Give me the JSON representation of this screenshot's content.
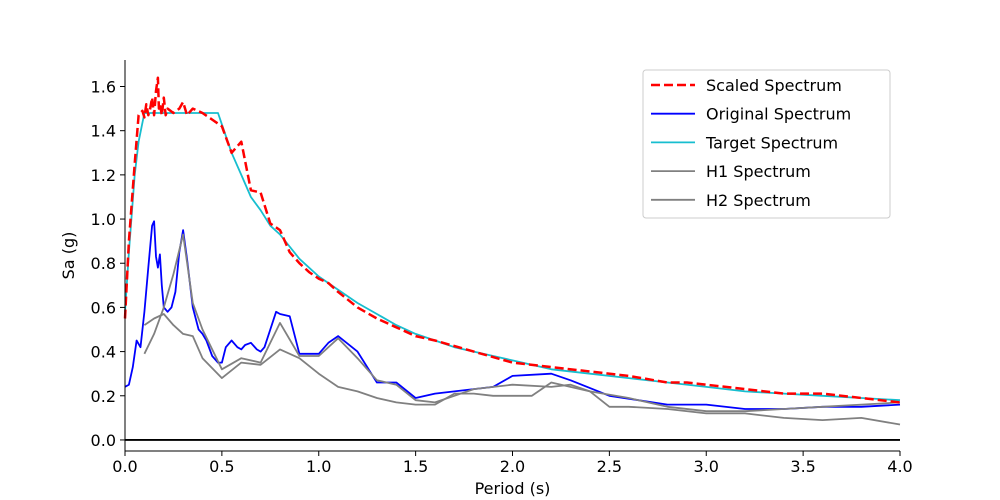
{
  "chart_data": {
    "type": "line",
    "title": "",
    "xlabel": "Period (s)",
    "ylabel": "Sa (g)",
    "xlim": [
      0.0,
      4.0
    ],
    "ylim": [
      -0.05,
      1.72
    ],
    "xticks": [
      "0.0",
      "0.5",
      "1.0",
      "1.5",
      "2.0",
      "2.5",
      "3.0",
      "3.5",
      "4.0"
    ],
    "yticks": [
      "0.0",
      "0.2",
      "0.4",
      "0.6",
      "0.8",
      "1.0",
      "1.2",
      "1.4",
      "1.6"
    ],
    "grid": false,
    "legend_position": "top-right",
    "series": [
      {
        "name": "Scaled Spectrum",
        "color": "#ff0000",
        "style": "dashed",
        "x": [
          0.0,
          0.02,
          0.05,
          0.07,
          0.09,
          0.1,
          0.11,
          0.12,
          0.13,
          0.14,
          0.15,
          0.16,
          0.17,
          0.175,
          0.18,
          0.19,
          0.2,
          0.21,
          0.22,
          0.25,
          0.28,
          0.3,
          0.32,
          0.35,
          0.4,
          0.45,
          0.5,
          0.55,
          0.6,
          0.65,
          0.7,
          0.75,
          0.8,
          0.85,
          0.9,
          0.95,
          1.0,
          1.05,
          1.1,
          1.2,
          1.3,
          1.4,
          1.5,
          1.6,
          1.8,
          2.0,
          2.2,
          2.4,
          2.6,
          2.8,
          2.9,
          3.0,
          3.2,
          3.4,
          3.6,
          3.8,
          4.0
        ],
        "y": [
          0.55,
          0.9,
          1.25,
          1.47,
          1.49,
          1.46,
          1.52,
          1.47,
          1.5,
          1.55,
          1.47,
          1.58,
          1.64,
          1.5,
          1.52,
          1.47,
          1.55,
          1.47,
          1.5,
          1.48,
          1.5,
          1.53,
          1.47,
          1.5,
          1.48,
          1.45,
          1.42,
          1.3,
          1.35,
          1.13,
          1.12,
          0.98,
          0.95,
          0.85,
          0.8,
          0.76,
          0.73,
          0.71,
          0.67,
          0.6,
          0.55,
          0.51,
          0.47,
          0.45,
          0.4,
          0.35,
          0.33,
          0.31,
          0.29,
          0.26,
          0.26,
          0.25,
          0.23,
          0.21,
          0.21,
          0.19,
          0.17
        ]
      },
      {
        "name": "Original Spectrum",
        "color": "#0000ff",
        "style": "solid",
        "x": [
          0.0,
          0.02,
          0.04,
          0.06,
          0.08,
          0.1,
          0.12,
          0.14,
          0.15,
          0.16,
          0.17,
          0.18,
          0.19,
          0.2,
          0.22,
          0.24,
          0.26,
          0.28,
          0.3,
          0.32,
          0.35,
          0.38,
          0.4,
          0.42,
          0.45,
          0.48,
          0.5,
          0.52,
          0.55,
          0.58,
          0.6,
          0.62,
          0.65,
          0.68,
          0.7,
          0.72,
          0.75,
          0.78,
          0.8,
          0.85,
          0.9,
          0.95,
          1.0,
          1.05,
          1.1,
          1.2,
          1.3,
          1.4,
          1.5,
          1.6,
          1.7,
          1.9,
          2.0,
          2.2,
          2.3,
          2.5,
          2.8,
          2.9,
          3.0,
          3.2,
          3.4,
          3.6,
          3.8,
          4.0
        ],
        "y": [
          0.24,
          0.25,
          0.33,
          0.45,
          0.42,
          0.58,
          0.78,
          0.97,
          0.99,
          0.83,
          0.78,
          0.84,
          0.7,
          0.6,
          0.58,
          0.6,
          0.67,
          0.85,
          0.95,
          0.82,
          0.6,
          0.5,
          0.48,
          0.45,
          0.38,
          0.35,
          0.35,
          0.42,
          0.45,
          0.42,
          0.41,
          0.43,
          0.44,
          0.41,
          0.4,
          0.42,
          0.5,
          0.58,
          0.57,
          0.56,
          0.39,
          0.39,
          0.39,
          0.44,
          0.47,
          0.4,
          0.26,
          0.26,
          0.19,
          0.21,
          0.22,
          0.24,
          0.29,
          0.3,
          0.27,
          0.2,
          0.16,
          0.16,
          0.16,
          0.14,
          0.14,
          0.15,
          0.15,
          0.16
        ]
      },
      {
        "name": "Target Spectrum",
        "color": "#17becf",
        "style": "solid",
        "x": [
          0.0,
          0.02,
          0.05,
          0.07,
          0.1,
          0.2,
          0.3,
          0.4,
          0.48,
          0.55,
          0.6,
          0.65,
          0.7,
          0.75,
          0.8,
          0.9,
          1.0,
          1.1,
          1.2,
          1.3,
          1.4,
          1.5,
          1.6,
          1.7,
          1.8,
          2.0,
          2.2,
          2.4,
          2.6,
          2.8,
          3.0,
          3.2,
          3.4,
          3.6,
          3.8,
          4.0
        ],
        "y": [
          0.58,
          0.85,
          1.2,
          1.35,
          1.48,
          1.48,
          1.48,
          1.48,
          1.48,
          1.3,
          1.2,
          1.1,
          1.04,
          0.97,
          0.93,
          0.82,
          0.74,
          0.68,
          0.62,
          0.57,
          0.52,
          0.48,
          0.45,
          0.42,
          0.4,
          0.36,
          0.32,
          0.3,
          0.28,
          0.26,
          0.24,
          0.22,
          0.21,
          0.2,
          0.19,
          0.18
        ]
      },
      {
        "name": "H1 Spectrum",
        "color": "#808080",
        "style": "solid",
        "x": [
          0.1,
          0.15,
          0.2,
          0.25,
          0.3,
          0.35,
          0.4,
          0.5,
          0.6,
          0.7,
          0.8,
          0.9,
          1.0,
          1.1,
          1.2,
          1.3,
          1.4,
          1.5,
          1.6,
          1.7,
          1.8,
          2.0,
          2.2,
          2.3,
          2.4,
          2.6,
          2.8,
          3.0,
          3.2,
          3.4,
          3.6,
          3.8,
          4.0
        ],
        "y": [
          0.39,
          0.48,
          0.6,
          0.75,
          0.93,
          0.62,
          0.5,
          0.32,
          0.37,
          0.35,
          0.53,
          0.38,
          0.38,
          0.46,
          0.37,
          0.27,
          0.25,
          0.18,
          0.17,
          0.2,
          0.23,
          0.25,
          0.24,
          0.25,
          0.22,
          0.19,
          0.15,
          0.13,
          0.13,
          0.14,
          0.15,
          0.16,
          0.17
        ]
      },
      {
        "name": "H2 Spectrum",
        "color": "#808080",
        "style": "solid",
        "x": [
          0.1,
          0.15,
          0.2,
          0.25,
          0.3,
          0.35,
          0.4,
          0.5,
          0.6,
          0.7,
          0.8,
          0.9,
          1.0,
          1.1,
          1.2,
          1.3,
          1.4,
          1.5,
          1.6,
          1.7,
          1.8,
          1.9,
          2.0,
          2.1,
          2.2,
          2.4,
          2.5,
          2.6,
          2.8,
          3.0,
          3.2,
          3.4,
          3.6,
          3.8,
          4.0
        ],
        "y": [
          0.52,
          0.55,
          0.57,
          0.52,
          0.48,
          0.47,
          0.37,
          0.28,
          0.35,
          0.34,
          0.41,
          0.37,
          0.3,
          0.24,
          0.22,
          0.19,
          0.17,
          0.16,
          0.16,
          0.21,
          0.21,
          0.2,
          0.2,
          0.2,
          0.26,
          0.22,
          0.15,
          0.15,
          0.14,
          0.12,
          0.12,
          0.1,
          0.09,
          0.1,
          0.07
        ]
      }
    ]
  }
}
